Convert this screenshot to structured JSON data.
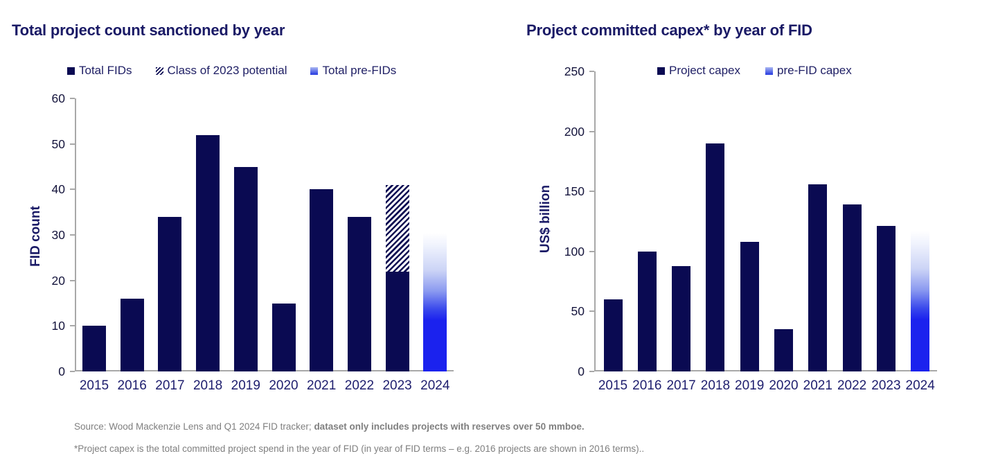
{
  "colors": {
    "bar_navy": "#0a0a52",
    "prefid_blue": "#1b22ee",
    "axis_gray": "#a8a8a8",
    "text_navy": "#1a1a66",
    "footer_gray": "#7f7f7f"
  },
  "footer": {
    "line1_normal": "Source: Wood Mackenzie Lens and Q1 2024 FID tracker; ",
    "line1_bold": "dataset only includes projects with reserves over 50 mmboe.",
    "line2": "*Project capex is the total committed project spend in the year of FID (in year of FID terms – e.g. 2016 projects are shown in 2016 terms).."
  },
  "chart_data": [
    {
      "type": "bar",
      "title": "Total project count sanctioned by year",
      "xlabel": "",
      "ylabel": "FID count",
      "ylim": [
        0,
        60
      ],
      "yticks": [
        0,
        10,
        20,
        30,
        40,
        50,
        60
      ],
      "grid": false,
      "legend_position": "top",
      "categories": [
        "2015",
        "2016",
        "2017",
        "2018",
        "2019",
        "2020",
        "2021",
        "2022",
        "2023",
        "2024"
      ],
      "series": [
        {
          "name": "Total FIDs",
          "style": "solid-navy",
          "values": [
            10,
            16,
            34,
            52,
            45,
            15,
            40,
            34,
            22,
            0
          ]
        },
        {
          "name": "Class of 2023 potential",
          "style": "hatched",
          "values": [
            0,
            0,
            0,
            0,
            0,
            0,
            0,
            0,
            19,
            0
          ]
        },
        {
          "name": "Total pre-FIDs",
          "style": "blue-gradient",
          "values": [
            0,
            0,
            0,
            0,
            0,
            0,
            0,
            0,
            0,
            30.5
          ]
        }
      ],
      "legend": [
        {
          "label": "Total FIDs",
          "style": "solid-navy"
        },
        {
          "label": "Class of 2023 potential",
          "style": "hatched"
        },
        {
          "label": "Total pre-FIDs",
          "style": "blue-gradient"
        }
      ]
    },
    {
      "type": "bar",
      "title": "Project committed capex* by year of FID",
      "xlabel": "",
      "ylabel": "US$ billion",
      "ylim": [
        0,
        250
      ],
      "yticks": [
        0,
        50,
        100,
        150,
        200,
        250
      ],
      "grid": false,
      "legend_position": "top",
      "categories": [
        "2015",
        "2016",
        "2017",
        "2018",
        "2019",
        "2020",
        "2021",
        "2022",
        "2023",
        "2024"
      ],
      "series": [
        {
          "name": "Project capex",
          "style": "solid-navy",
          "values": [
            60,
            100,
            88,
            190,
            108,
            35,
            156,
            139,
            121,
            0
          ]
        },
        {
          "name": "pre-FID capex",
          "style": "blue-gradient",
          "values": [
            0,
            0,
            0,
            0,
            0,
            0,
            0,
            0,
            0,
            117
          ]
        }
      ],
      "legend": [
        {
          "label": "Project capex",
          "style": "solid-navy"
        },
        {
          "label": "pre-FID capex",
          "style": "blue-gradient"
        }
      ]
    }
  ]
}
